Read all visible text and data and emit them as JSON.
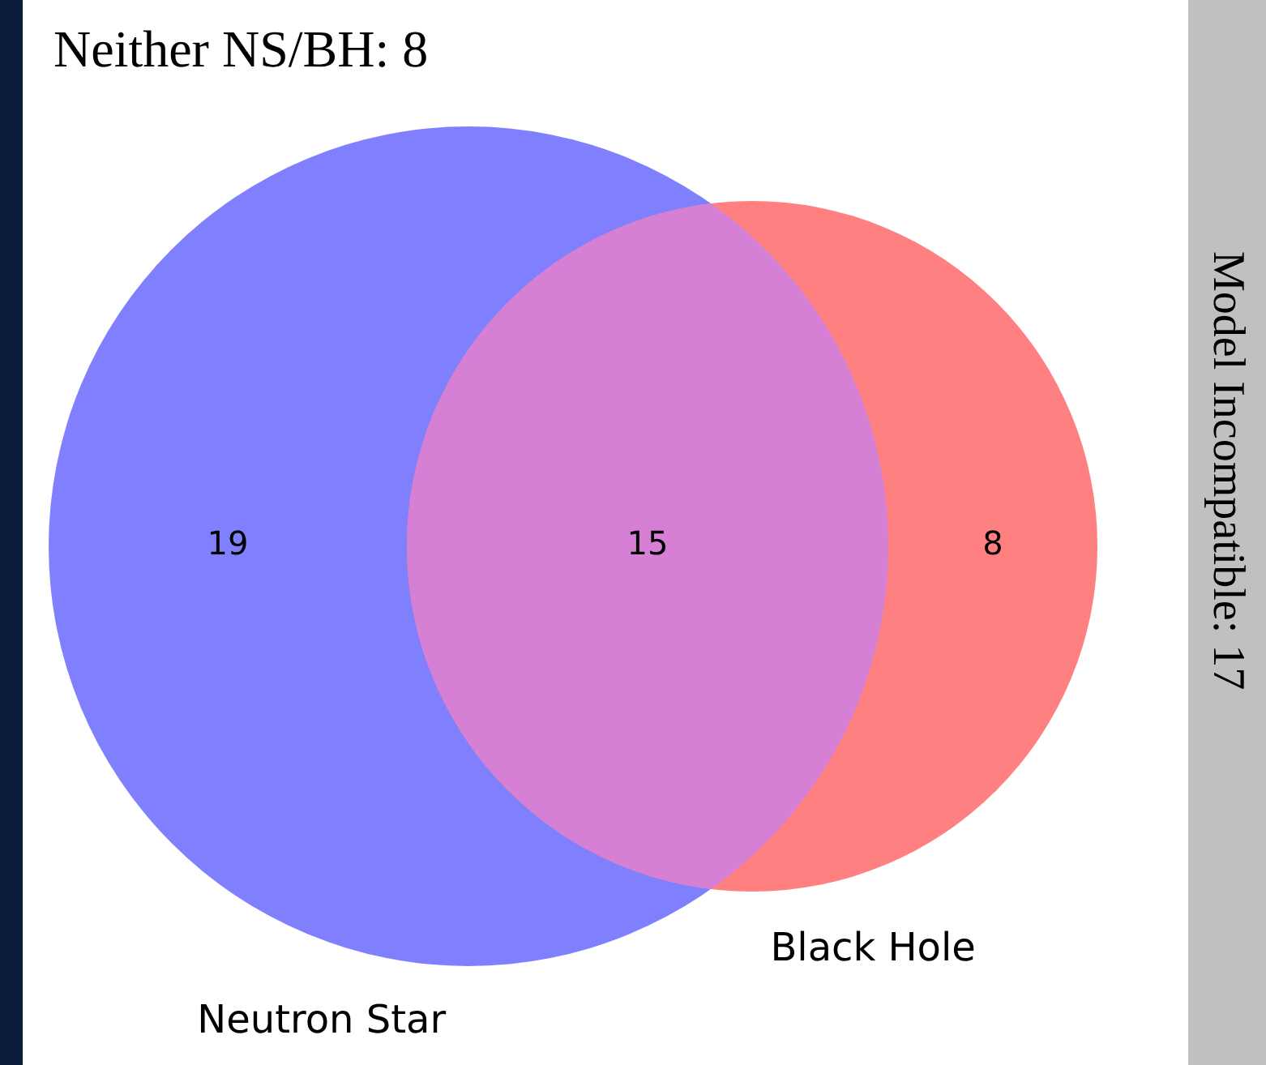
{
  "chart_data": {
    "type": "other",
    "categories": [
      "Neutron Star",
      null,
      "Black Hole"
    ],
    "values": [
      19,
      15,
      8
    ],
    "colors": [
      "#8080ff",
      "#d580d5",
      "#ff8080"
    ],
    "data_labels": true,
    "annotations": [
      "Neither NS/BH: 8",
      "Model Incompatible: 17"
    ]
  }
}
